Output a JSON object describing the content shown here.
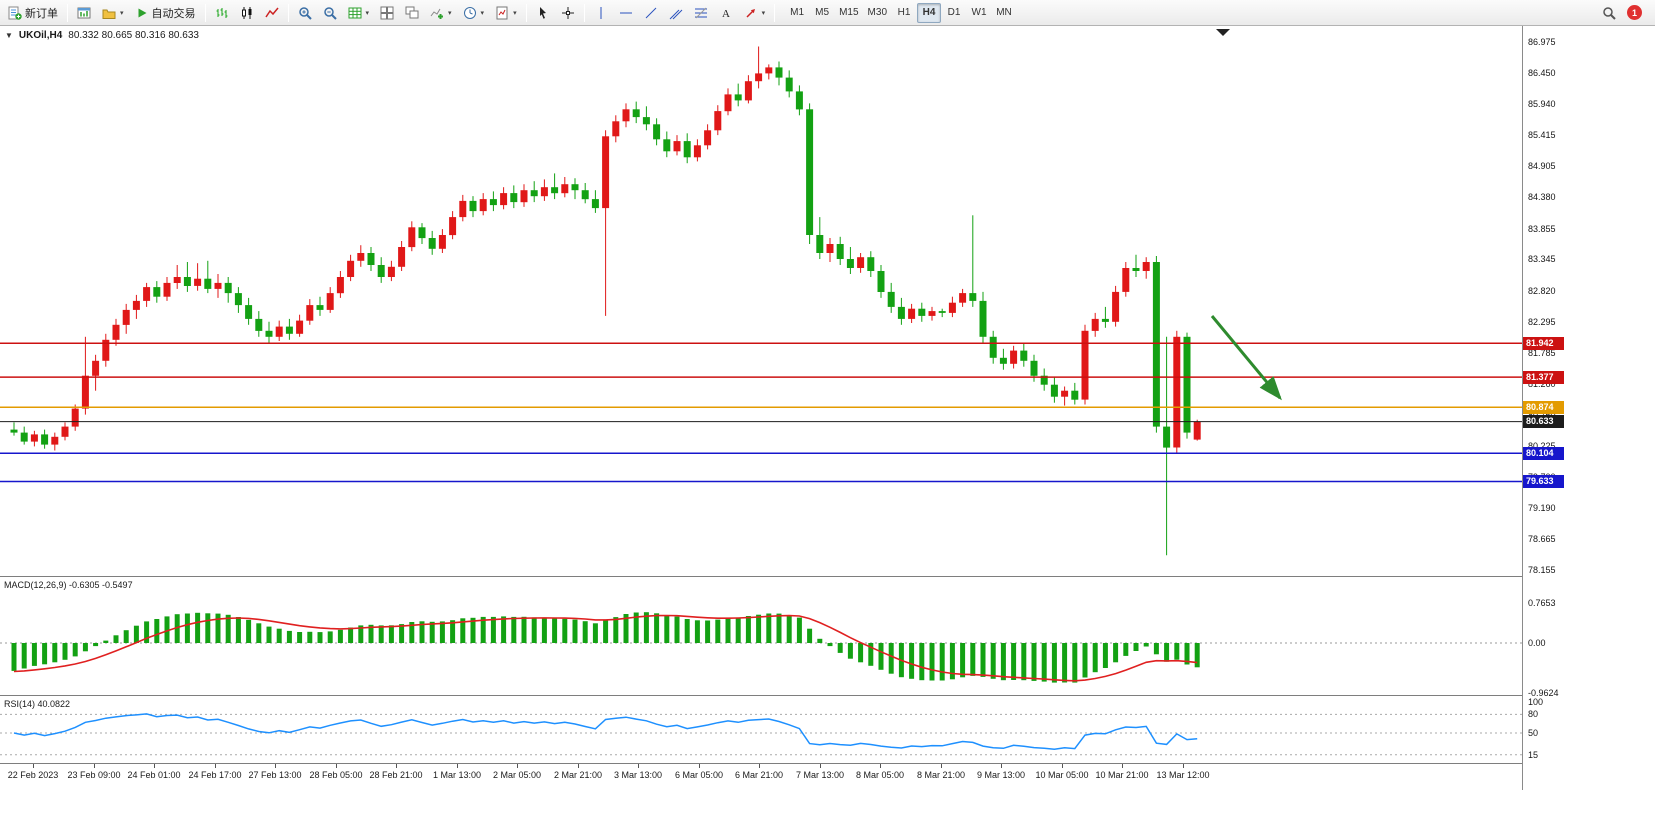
{
  "toolbar": {
    "new_order_label": "新订单",
    "autotrading_label": "自动交易",
    "timeframes": [
      "M1",
      "M5",
      "M15",
      "M30",
      "H1",
      "H4",
      "D1",
      "W1",
      "MN"
    ],
    "active_timeframe": "H4",
    "notification_count": "1"
  },
  "icons": {
    "caret": "▾",
    "symbol_dropdown": "▼"
  },
  "chart": {
    "title": "UKOil,H4"
  },
  "chart_data": {
    "type": "candlestick",
    "symbol": "UKOil",
    "timeframe": "H4",
    "ohlc_display": "80.332 80.665 80.316 80.633",
    "last_candle": {
      "open": 80.332,
      "high": 80.665,
      "low": 80.316,
      "close": 80.633
    },
    "price_range": [
      78.155,
      86.975
    ],
    "up_color": "#e01818",
    "down_color": "#13a113",
    "candles": [
      [
        80.5,
        80.62,
        80.4,
        80.45
      ],
      [
        80.45,
        80.55,
        80.25,
        80.3
      ],
      [
        80.3,
        80.48,
        80.22,
        80.42
      ],
      [
        80.42,
        80.5,
        80.18,
        80.25
      ],
      [
        80.25,
        80.45,
        80.15,
        80.38
      ],
      [
        80.38,
        80.62,
        80.32,
        80.55
      ],
      [
        80.55,
        80.92,
        80.48,
        80.85
      ],
      [
        80.85,
        82.05,
        80.75,
        81.4
      ],
      [
        81.4,
        81.75,
        81.15,
        81.65
      ],
      [
        81.65,
        82.1,
        81.55,
        82.0
      ],
      [
        82.0,
        82.35,
        81.9,
        82.25
      ],
      [
        82.25,
        82.6,
        82.1,
        82.5
      ],
      [
        82.5,
        82.75,
        82.35,
        82.65
      ],
      [
        82.65,
        82.95,
        82.55,
        82.88
      ],
      [
        82.88,
        82.98,
        82.62,
        82.72
      ],
      [
        82.72,
        83.05,
        82.65,
        82.95
      ],
      [
        82.95,
        83.25,
        82.85,
        83.05
      ],
      [
        83.05,
        83.3,
        82.8,
        82.9
      ],
      [
        82.9,
        83.28,
        82.82,
        83.02
      ],
      [
        83.02,
        83.32,
        82.78,
        82.85
      ],
      [
        82.85,
        83.1,
        82.7,
        82.95
      ],
      [
        82.95,
        83.05,
        82.62,
        82.78
      ],
      [
        82.78,
        82.88,
        82.45,
        82.58
      ],
      [
        82.58,
        82.7,
        82.25,
        82.35
      ],
      [
        82.35,
        82.48,
        82.05,
        82.15
      ],
      [
        82.15,
        82.3,
        81.95,
        82.05
      ],
      [
        82.05,
        82.32,
        81.98,
        82.22
      ],
      [
        82.22,
        82.35,
        82.0,
        82.1
      ],
      [
        82.1,
        82.42,
        82.05,
        82.32
      ],
      [
        82.32,
        82.68,
        82.25,
        82.58
      ],
      [
        82.58,
        82.72,
        82.4,
        82.5
      ],
      [
        82.5,
        82.88,
        82.45,
        82.78
      ],
      [
        82.78,
        83.15,
        82.7,
        83.05
      ],
      [
        83.05,
        83.42,
        82.98,
        83.32
      ],
      [
        83.32,
        83.58,
        83.22,
        83.45
      ],
      [
        83.45,
        83.55,
        83.15,
        83.25
      ],
      [
        83.25,
        83.38,
        82.95,
        83.05
      ],
      [
        83.05,
        83.32,
        82.98,
        83.22
      ],
      [
        83.22,
        83.65,
        83.15,
        83.55
      ],
      [
        83.55,
        83.98,
        83.48,
        83.88
      ],
      [
        83.88,
        83.95,
        83.6,
        83.7
      ],
      [
        83.7,
        83.82,
        83.42,
        83.52
      ],
      [
        83.52,
        83.85,
        83.45,
        83.75
      ],
      [
        83.75,
        84.15,
        83.68,
        84.05
      ],
      [
        84.05,
        84.42,
        83.98,
        84.32
      ],
      [
        84.32,
        84.4,
        84.05,
        84.15
      ],
      [
        84.15,
        84.45,
        84.08,
        84.35
      ],
      [
        84.35,
        84.48,
        84.15,
        84.25
      ],
      [
        84.25,
        84.55,
        84.18,
        84.45
      ],
      [
        84.45,
        84.58,
        84.2,
        84.3
      ],
      [
        84.3,
        84.6,
        84.22,
        84.5
      ],
      [
        84.5,
        84.65,
        84.3,
        84.4
      ],
      [
        84.4,
        84.68,
        84.32,
        84.55
      ],
      [
        84.55,
        84.78,
        84.35,
        84.45
      ],
      [
        84.45,
        84.72,
        84.38,
        84.6
      ],
      [
        84.6,
        84.7,
        84.35,
        84.5
      ],
      [
        84.5,
        84.62,
        84.28,
        84.35
      ],
      [
        84.35,
        84.5,
        84.12,
        84.2
      ],
      [
        84.2,
        85.5,
        82.4,
        85.4
      ],
      [
        85.4,
        85.75,
        85.3,
        85.65
      ],
      [
        85.65,
        85.95,
        85.55,
        85.85
      ],
      [
        85.85,
        85.98,
        85.62,
        85.72
      ],
      [
        85.72,
        85.9,
        85.5,
        85.6
      ],
      [
        85.6,
        85.7,
        85.25,
        85.35
      ],
      [
        85.35,
        85.48,
        85.05,
        85.15
      ],
      [
        85.15,
        85.42,
        85.08,
        85.32
      ],
      [
        85.32,
        85.45,
        84.95,
        85.05
      ],
      [
        85.05,
        85.35,
        84.98,
        85.25
      ],
      [
        85.25,
        85.6,
        85.18,
        85.5
      ],
      [
        85.5,
        85.92,
        85.42,
        85.82
      ],
      [
        85.82,
        86.2,
        85.75,
        86.1
      ],
      [
        86.1,
        86.28,
        85.9,
        86.0
      ],
      [
        86.0,
        86.42,
        85.95,
        86.32
      ],
      [
        86.32,
        86.9,
        86.2,
        86.45
      ],
      [
        86.45,
        86.6,
        86.35,
        86.55
      ],
      [
        86.55,
        86.65,
        86.25,
        86.38
      ],
      [
        86.38,
        86.5,
        86.05,
        86.15
      ],
      [
        86.15,
        86.25,
        85.75,
        85.85
      ],
      [
        85.85,
        85.95,
        83.6,
        83.75
      ],
      [
        83.75,
        84.05,
        83.35,
        83.45
      ],
      [
        83.45,
        83.7,
        83.3,
        83.6
      ],
      [
        83.6,
        83.72,
        83.25,
        83.35
      ],
      [
        83.35,
        83.55,
        83.1,
        83.2
      ],
      [
        83.2,
        83.45,
        83.12,
        83.38
      ],
      [
        83.38,
        83.48,
        83.05,
        83.15
      ],
      [
        83.15,
        83.25,
        82.7,
        82.8
      ],
      [
        82.8,
        82.95,
        82.45,
        82.55
      ],
      [
        82.55,
        82.7,
        82.25,
        82.35
      ],
      [
        82.35,
        82.6,
        82.28,
        82.52
      ],
      [
        82.52,
        82.62,
        82.3,
        82.4
      ],
      [
        82.4,
        82.55,
        82.32,
        82.48
      ],
      [
        82.48,
        82.52,
        82.38,
        82.45
      ],
      [
        82.45,
        82.72,
        82.38,
        82.62
      ],
      [
        82.62,
        82.85,
        82.55,
        82.78
      ],
      [
        82.78,
        84.08,
        82.55,
        82.65
      ],
      [
        82.65,
        82.8,
        81.95,
        82.05
      ],
      [
        82.05,
        82.15,
        81.6,
        81.7
      ],
      [
        81.7,
        81.85,
        81.5,
        81.6
      ],
      [
        81.6,
        81.9,
        81.52,
        81.82
      ],
      [
        81.82,
        81.95,
        81.55,
        81.65
      ],
      [
        81.65,
        81.75,
        81.3,
        81.4
      ],
      [
        81.4,
        81.52,
        81.15,
        81.25
      ],
      [
        81.25,
        81.38,
        80.95,
        81.05
      ],
      [
        81.05,
        81.22,
        80.9,
        81.15
      ],
      [
        81.15,
        81.28,
        80.92,
        81.0
      ],
      [
        81.0,
        82.25,
        80.92,
        82.15
      ],
      [
        82.15,
        82.45,
        82.05,
        82.35
      ],
      [
        82.35,
        82.55,
        82.2,
        82.3
      ],
      [
        82.3,
        82.9,
        82.22,
        82.8
      ],
      [
        82.8,
        83.3,
        82.72,
        83.2
      ],
      [
        83.2,
        83.42,
        83.05,
        83.15
      ],
      [
        83.15,
        83.38,
        83.02,
        83.3
      ],
      [
        83.3,
        83.4,
        80.45,
        80.55
      ],
      [
        80.55,
        82.05,
        78.4,
        80.2
      ],
      [
        80.2,
        82.15,
        80.1,
        82.05
      ],
      [
        82.05,
        82.12,
        80.35,
        80.45
      ],
      [
        80.332,
        80.665,
        80.316,
        80.633
      ]
    ],
    "horizontal_levels": [
      {
        "price": 81.942,
        "label": "81.942",
        "color": "#cc1111",
        "kind": "resistance-line-1"
      },
      {
        "price": 81.377,
        "label": "81.377",
        "color": "#cc1111",
        "kind": "resistance-line-2"
      },
      {
        "price": 80.874,
        "label": "80.874",
        "color": "#e39b00",
        "kind": "pivot-line"
      },
      {
        "price": 80.633,
        "label": "80.633",
        "color": "#1c1c1c",
        "kind": "current-price-line"
      },
      {
        "price": 80.104,
        "label": "80.104",
        "color": "#1616cc",
        "kind": "support-line-1"
      },
      {
        "price": 79.633,
        "label": "79.633",
        "color": "#1616cc",
        "kind": "support-line-2"
      }
    ],
    "price_axis_labels": [
      "86.975",
      "86.450",
      "85.940",
      "85.415",
      "84.905",
      "84.380",
      "83.855",
      "83.345",
      "82.820",
      "82.295",
      "81.785",
      "81.260",
      "80.750",
      "80.225",
      "79.700",
      "79.190",
      "78.665",
      "78.155"
    ],
    "time_axis_labels": [
      "22 Feb 2023",
      "23 Feb 09:00",
      "24 Feb 01:00",
      "24 Feb 17:00",
      "27 Feb 13:00",
      "28 Feb 05:00",
      "28 Feb 21:00",
      "1 Mar 13:00",
      "2 Mar 05:00",
      "2 Mar 21:00",
      "3 Mar 13:00",
      "6 Mar 05:00",
      "6 Mar 21:00",
      "7 Mar 13:00",
      "8 Mar 05:00",
      "8 Mar 21:00",
      "9 Mar 13:00",
      "10 Mar 05:00",
      "10 Mar 21:00",
      "13 Mar 12:00"
    ],
    "indicators": [
      {
        "type": "MACD",
        "label": "MACD(12,26,9) -0.6305 -0.5497",
        "axis_labels": [
          "0.7653",
          "0.00",
          "-0.9624"
        ],
        "histogram_color": "#13a113",
        "signal_color": "#e02020"
      },
      {
        "type": "RSI",
        "label": "RSI(14) 40.0822",
        "axis_labels": [
          "100",
          "80",
          "50",
          "15"
        ],
        "line_color": "#1e90ff",
        "levels": [
          80,
          50,
          15
        ]
      }
    ],
    "annotation": {
      "type": "arrow",
      "color": "#2e8b2e",
      "direction": "down-right"
    }
  }
}
